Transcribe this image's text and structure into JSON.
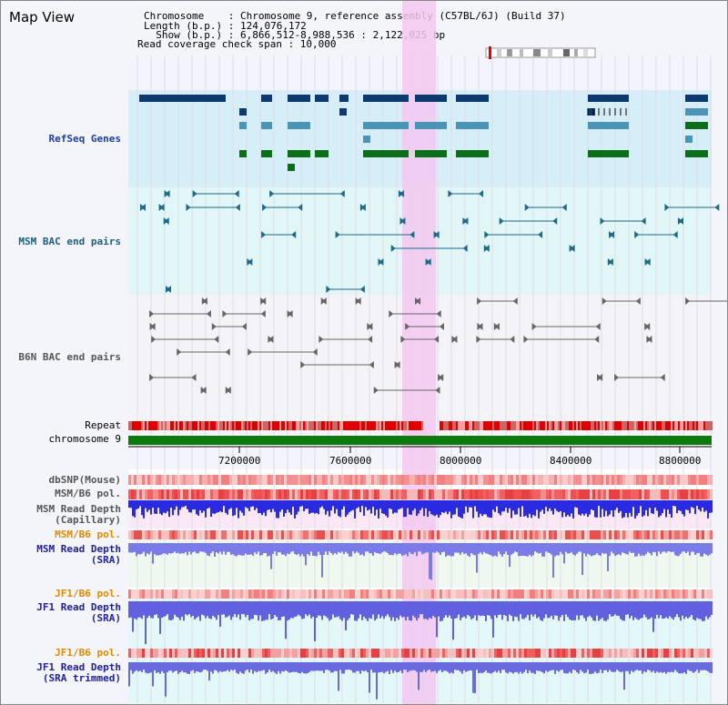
{
  "page": {
    "title": "Map View"
  },
  "header": {
    "chromosome": "Chromosome    : Chromosome 9, reference assembly (C57BL/6J) (Build 37)",
    "length": "Length (b.p.) : 124,076,172",
    "show": "  Show (b.p.) : 6,866,512-8,988,536 : 2,122,025 bp",
    "coverage": "Read coverage check span : 10,000"
  },
  "tracks": {
    "refseq": {
      "label": "RefSeq Genes",
      "color": "#1a4f8c"
    },
    "msm_bac": {
      "label": "MSM BAC end pairs",
      "color": "#1a6b8c"
    },
    "b6n_bac": {
      "label": "B6N BAC end pairs",
      "color": "#555555"
    },
    "repeat": {
      "label": "Repeat"
    },
    "chromosome": {
      "label": "chromosome 9"
    },
    "dbsnp": {
      "label": "dbSNP(Mouse)"
    },
    "msm_b6_pol_1": {
      "label": "MSM/B6 pol."
    },
    "msm_depth_cap": {
      "label": "MSM Read Depth\n(Capillary)"
    },
    "msm_b6_pol_2": {
      "label": "MSM/B6 pol."
    },
    "msm_depth_sra": {
      "label": "MSM Read Depth\n(SRA)"
    },
    "jf1_b6_pol_1": {
      "label": "JF1/B6 pol."
    },
    "jf1_depth_sra": {
      "label": "JF1 Read Depth\n(SRA)"
    },
    "jf1_b6_pol_2": {
      "label": "JF1/B6 pol."
    },
    "jf1_depth_trim": {
      "label": "JF1 Read Depth\n(SRA trimmed)"
    }
  },
  "axis": {
    "ticks": [
      "7200000",
      "7600000",
      "8000000",
      "8400000",
      "8800000"
    ]
  },
  "colors": {
    "highlight": "#f3c8f0",
    "orange_label": "#e08a00",
    "blue_label": "#2020a0",
    "refseq_label": "#1a3fa0",
    "msm_label": "#1a5f7a"
  }
}
